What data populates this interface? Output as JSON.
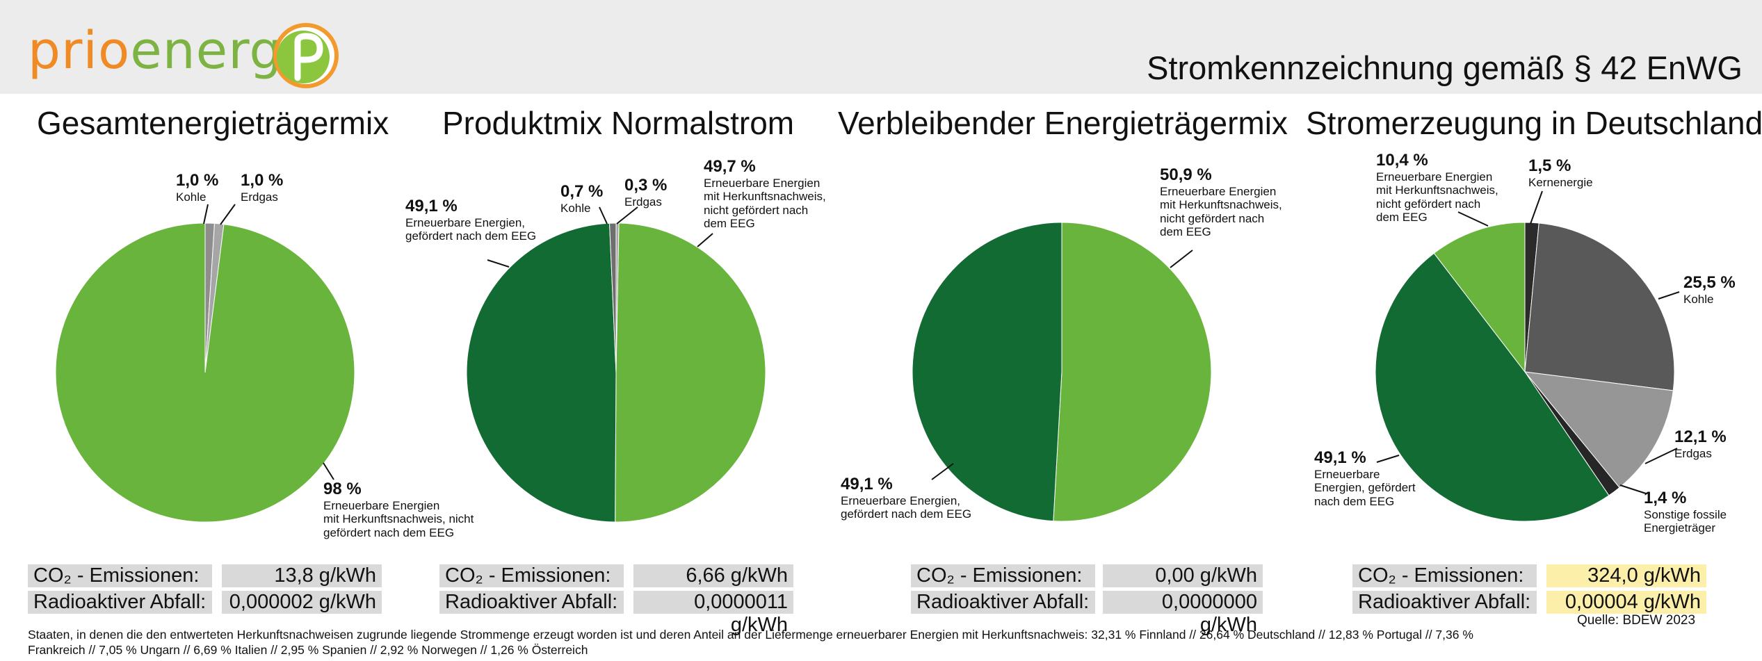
{
  "header": {
    "logo_part1": "prio",
    "logo_part2": "energie",
    "title": "Stromkennzeichnung gemäß § 42 EnWG"
  },
  "colors": {
    "light_green": "#68b43c",
    "dark_green": "#136b34",
    "mid_gray": "#8e8e8e",
    "dark_gray": "#595959",
    "darkest_gray": "#2b2b2b"
  },
  "chart_data": [
    {
      "type": "pie",
      "title": "Gesamtenergieträgermix",
      "slices": [
        {
          "label": "Erneuerbare Energien mit Herkunftsnachweis, nicht gefördert nach dem EEG",
          "value": 98,
          "value_label": "98 %",
          "color": "#68b43c"
        },
        {
          "label": "Kohle",
          "value": 1.0,
          "value_label": "1,0 %",
          "color": "#8e8e8e"
        },
        {
          "label": "Erdgas",
          "value": 1.0,
          "value_label": "1,0 %",
          "color": "#a6a6a6"
        }
      ],
      "co2": "13,8 g/kWh",
      "waste": "0,000002 g/kWh"
    },
    {
      "type": "pie",
      "title": "Produktmix Normalstrom",
      "slices": [
        {
          "label": "Erneuerbare Energien mit Herkunftsnachweis, nicht gefördert nach dem EEG",
          "value": 49.7,
          "value_label": "49,7 %",
          "color": "#68b43c"
        },
        {
          "label": "Erneuerbare Energien, gefördert nach dem EEG",
          "value": 49.1,
          "value_label": "49,1 %",
          "color": "#136b34"
        },
        {
          "label": "Kohle",
          "value": 0.7,
          "value_label": "0,7 %",
          "color": "#6e6e6e"
        },
        {
          "label": "Erdgas",
          "value": 0.3,
          "value_label": "0,3 %",
          "color": "#a6a6a6"
        }
      ],
      "co2": "6,66 g/kWh",
      "waste": "0,0000011 g/kWh"
    },
    {
      "type": "pie",
      "title": "Verbleibender Energieträgermix",
      "slices": [
        {
          "label": "Erneuerbare Energien mit Herkunftsnachweis, nicht gefördert nach dem EEG",
          "value": 50.9,
          "value_label": "50,9 %",
          "color": "#68b43c"
        },
        {
          "label": "Erneuerbare Energien, gefördert nach dem EEG",
          "value": 49.1,
          "value_label": "49,1 %",
          "color": "#136b34"
        }
      ],
      "co2": "0,00 g/kWh",
      "waste": "0,0000000 g/kWh"
    },
    {
      "type": "pie",
      "title": "Stromerzeugung in Deutschland",
      "slices": [
        {
          "label": "Kernenergie",
          "value": 1.5,
          "value_label": "1,5 %",
          "color": "#2b2b2b"
        },
        {
          "label": "Kohle",
          "value": 25.5,
          "value_label": "25,5 %",
          "color": "#595959"
        },
        {
          "label": "Erdgas",
          "value": 12.1,
          "value_label": "12,1 %",
          "color": "#969696"
        },
        {
          "label": "Sonstige fossile Energieträger",
          "value": 1.4,
          "value_label": "1,4 %",
          "color": "#262626"
        },
        {
          "label": "Erneuerbare Energien, gefördert nach dem EEG",
          "value": 49.1,
          "value_label": "49,1 %",
          "color": "#136b34"
        },
        {
          "label": "Erneuerbare Energien mit Herkunftsnachweis, nicht gefördert nach dem EEG",
          "value": 10.4,
          "value_label": "10,4 %",
          "color": "#68b43c"
        }
      ],
      "co2": "324,0 g/kWh",
      "waste": "0,00004 g/kWh"
    }
  ],
  "labels": {
    "c1_l0_pct": "98 %",
    "c1_l0_txt": "Erneuerbare Energien\nmit Herkunftsnachweis, nicht\ngefördert nach dem EEG",
    "c1_l1_pct": "1,0 %",
    "c1_l1_txt": "Kohle",
    "c1_l2_pct": "1,0 %",
    "c1_l2_txt": "Erdgas",
    "c2_l0_pct": "49,7 %",
    "c2_l0_txt": "Erneuerbare Energien\nmit Herkunftsnachweis,\nnicht gefördert nach\ndem EEG",
    "c2_l1_pct": "49,1 %",
    "c2_l1_txt": "Erneuerbare Energien,\ngefördert nach dem EEG",
    "c2_l2_pct": "0,7 %",
    "c2_l2_txt": "Kohle",
    "c2_l3_pct": "0,3 %",
    "c2_l3_txt": "Erdgas",
    "c3_l0_pct": "50,9 %",
    "c3_l0_txt": "Erneuerbare Energien\nmit Herkunftsnachweis,\nnicht gefördert nach\ndem EEG",
    "c3_l1_pct": "49,1 %",
    "c3_l1_txt": "Erneuerbare Energien,\ngefördert nach dem EEG",
    "c4_l0_pct": "1,5 %",
    "c4_l0_txt": "Kernenergie",
    "c4_l1_pct": "25,5 %",
    "c4_l1_txt": "Kohle",
    "c4_l2_pct": "12,1 %",
    "c4_l2_txt": "Erdgas",
    "c4_l3_pct": "1,4 %",
    "c4_l3_txt": "Sonstige fossile\nEnergieträger",
    "c4_l4_pct": "49,1 %",
    "c4_l4_txt": "Erneuerbare\nEnergien, gefördert\nnach dem EEG",
    "c4_l5_pct": "10,4 %",
    "c4_l5_txt": "Erneuerbare Energien\nmit Herkunftsnachweis,\nnicht gefördert nach\ndem EEG"
  },
  "metrics": {
    "co2_label": "CO₂ - Emissionen:",
    "waste_label": "Radioaktiver Abfall:"
  },
  "source": "Quelle: BDEW 2023",
  "footnote": "Staaten, in denen die den entwerteten Herkunftsnachweisen zugrunde liegende Strommenge erzeugt worden ist und deren Anteil an der Liefermenge erneuerbarer Energien mit Herkunftsnachweis: 32,31 % Finnland // 26,64 % Deutschland // 12,83 % Portugal // 7,36 % Frankreich // 7,05 % Ungarn // 6,69 % Italien // 2,95 % Spanien // 2,92 % Norwegen // 1,26 % Österreich"
}
